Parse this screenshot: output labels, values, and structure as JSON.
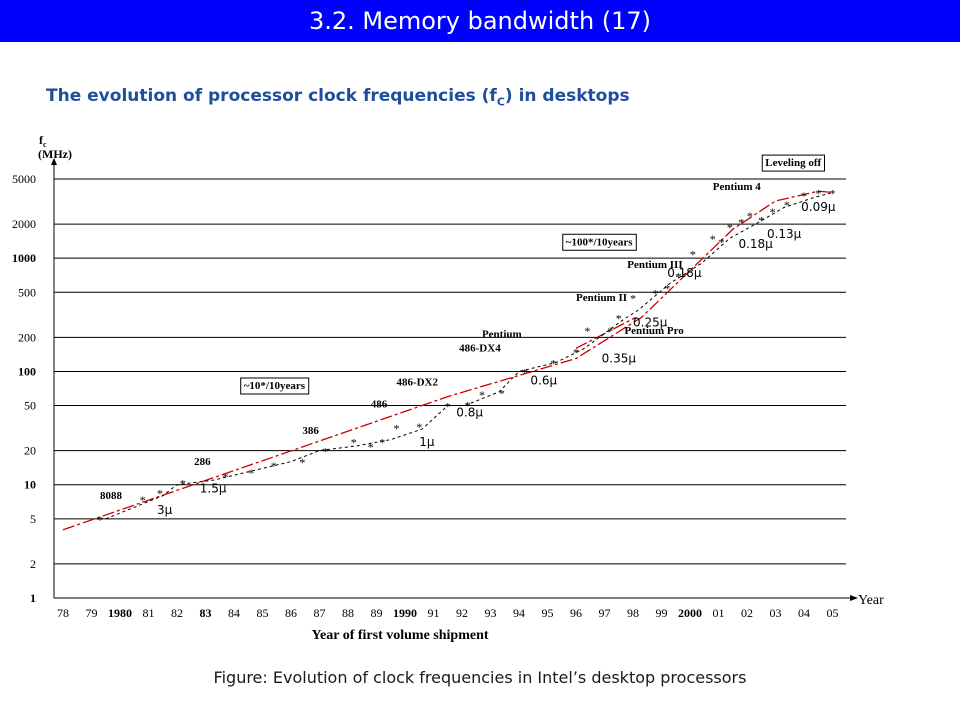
{
  "header": {
    "title": "3.2.  Memory bandwidth (17)",
    "subtitle": "The evolution of processor clock frequencies (f",
    "subtitle_sub": "C",
    "subtitle_tail": ") in desktops"
  },
  "caption": "Figure: Evolution of clock frequencies in Intel’s desktop processors",
  "colors": {
    "title_bg": "#0000ff",
    "subtitle": "#1f4e9c",
    "trend": "#cc0000",
    "data": "#000000"
  },
  "chart_data": {
    "type": "line",
    "scale": "log",
    "ylabel_main": "f",
    "ylabel_sub": "c",
    "ylabel_unit": "(MHz)",
    "xlabel": "Year of first volume shipment",
    "xaxis_end": "Year",
    "ylim": [
      1,
      5000
    ],
    "y_ticks": [
      "1",
      "2",
      "5",
      "10",
      "20",
      "50",
      "100",
      "200",
      "500",
      "1000",
      "2000",
      "5000"
    ],
    "y_bold": [
      "1",
      "10",
      "100",
      "1000"
    ],
    "x_ticks": [
      "78",
      "79",
      "1980",
      "81",
      "82",
      "83",
      "84",
      "85",
      "86",
      "87",
      "88",
      "89",
      "1990",
      "91",
      "92",
      "93",
      "94",
      "95",
      "96",
      "97",
      "98",
      "99",
      "2000",
      "01",
      "02",
      "03",
      "04",
      "05"
    ],
    "x_bold": [
      "1980",
      "83",
      "1990",
      "2000"
    ],
    "series": [
      {
        "line": "trend",
        "x": [
          1978,
          1991.5,
          1996,
          1998.3,
          2001.5,
          2003,
          2004.5,
          2005
        ],
        "y": [
          4,
          60,
          130,
          300,
          1800,
          3200,
          3900,
          3800
        ]
      },
      {
        "line": "trend",
        "x": [
          1996,
          1998.1
        ],
        "y": [
          160,
          300
        ]
      },
      {
        "line": "data",
        "x": [
          1979.5,
          1981.5,
          1982,
          1983.3,
          1986,
          1987,
          1988.3,
          1989.5,
          1990.6,
          1991.5,
          1992.1,
          1993.3,
          1994,
          1995.3,
          1996.3,
          1997.6,
          1998.2,
          1999.3,
          2000.4,
          2001.4,
          2002.3,
          2003.3,
          2004.3,
          2005
        ],
        "y": [
          5,
          8,
          10,
          11,
          16,
          20,
          22,
          25,
          31,
          50,
          50,
          66,
          100,
          120,
          160,
          280,
          350,
          600,
          900,
          1500,
          2000,
          2800,
          3400,
          3800
        ]
      }
    ],
    "markers": [
      {
        "x": 1979.3,
        "y": 5
      },
      {
        "x": 1980.8,
        "y": 7.5
      },
      {
        "x": 1981.4,
        "y": 8.5
      },
      {
        "x": 1982.2,
        "y": 10.5
      },
      {
        "x": 1983.7,
        "y": 12
      },
      {
        "x": 1984.6,
        "y": 13
      },
      {
        "x": 1985.4,
        "y": 15
      },
      {
        "x": 1986.4,
        "y": 16
      },
      {
        "x": 1987.2,
        "y": 20
      },
      {
        "x": 1988.2,
        "y": 24
      },
      {
        "x": 1988.8,
        "y": 22
      },
      {
        "x": 1989.2,
        "y": 24
      },
      {
        "x": 1989.7,
        "y": 32
      },
      {
        "x": 1990.5,
        "y": 33
      },
      {
        "x": 1991.5,
        "y": 50
      },
      {
        "x": 1992.2,
        "y": 51
      },
      {
        "x": 1992.7,
        "y": 63
      },
      {
        "x": 1993.4,
        "y": 65
      },
      {
        "x": 1994.2,
        "y": 100
      },
      {
        "x": 1995.2,
        "y": 120
      },
      {
        "x": 1996.0,
        "y": 150
      },
      {
        "x": 1996.4,
        "y": 233
      },
      {
        "x": 1997.2,
        "y": 233
      },
      {
        "x": 1997.5,
        "y": 300
      },
      {
        "x": 1998.0,
        "y": 450
      },
      {
        "x": 1998.8,
        "y": 500
      },
      {
        "x": 1999.2,
        "y": 550
      },
      {
        "x": 1999.6,
        "y": 700
      },
      {
        "x": 2000.1,
        "y": 1100
      },
      {
        "x": 2000.8,
        "y": 1500
      },
      {
        "x": 2001.1,
        "y": 1400
      },
      {
        "x": 2001.4,
        "y": 1900
      },
      {
        "x": 2001.8,
        "y": 2100
      },
      {
        "x": 2002.1,
        "y": 2400
      },
      {
        "x": 2002.5,
        "y": 2200
      },
      {
        "x": 2002.9,
        "y": 2600
      },
      {
        "x": 2003.4,
        "y": 3000
      },
      {
        "x": 2004.0,
        "y": 3600
      },
      {
        "x": 2004.5,
        "y": 3800
      },
      {
        "x": 2005.0,
        "y": 3800
      }
    ],
    "processors": [
      {
        "label": "8088",
        "x": 1979.3,
        "y": 7.5
      },
      {
        "label": "286",
        "x": 1982.6,
        "y": 15
      },
      {
        "label": "386",
        "x": 1986.4,
        "y": 28
      },
      {
        "label": "486",
        "x": 1988.8,
        "y": 48
      },
      {
        "label": "486-DX2",
        "x": 1989.7,
        "y": 75
      },
      {
        "label": "486-DX4",
        "x": 1991.9,
        "y": 150
      },
      {
        "label": "Pentium",
        "x": 1992.7,
        "y": 200
      },
      {
        "label": "Pentium II",
        "x": 1996.0,
        "y": 420
      },
      {
        "label": "Pentium III",
        "x": 1997.8,
        "y": 820
      },
      {
        "label": "Pentium Pro",
        "x": 1997.7,
        "y": 215
      },
      {
        "label": "Pentium 4",
        "x": 2000.8,
        "y": 4000
      }
    ],
    "feature_sizes": [
      {
        "label": "3µ",
        "x": 1981.3,
        "y": 5.5
      },
      {
        "label": "1.5µ",
        "x": 1982.8,
        "y": 8.5
      },
      {
        "label": "1µ",
        "x": 1990.5,
        "y": 22
      },
      {
        "label": "0.8µ",
        "x": 1991.8,
        "y": 40
      },
      {
        "label": "0.6µ",
        "x": 1994.4,
        "y": 77
      },
      {
        "label": "0.35µ",
        "x": 1996.9,
        "y": 120
      },
      {
        "label": "0.25µ",
        "x": 1998.0,
        "y": 250
      },
      {
        "label": "0.18µ",
        "x": 1999.2,
        "y": 680
      },
      {
        "label": "0.18µ",
        "x": 2001.7,
        "y": 1230
      },
      {
        "label": "0.13µ",
        "x": 2002.7,
        "y": 1500
      },
      {
        "label": "0.09µ",
        "x": 2003.9,
        "y": 2600
      }
    ],
    "annotations": [
      {
        "label": "~10*/10years",
        "x": 1984.2,
        "y": 70
      },
      {
        "label": "~100*/10years",
        "x": 1995.5,
        "y": 1300
      },
      {
        "label": "Leveling off",
        "x": 2002.5,
        "y": 6500
      }
    ]
  }
}
